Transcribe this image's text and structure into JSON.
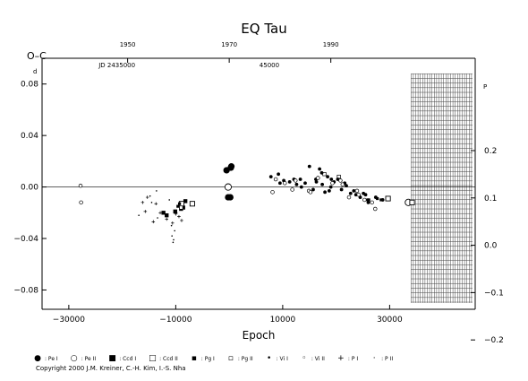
{
  "chart_data": {
    "type": "scatter",
    "title": "EQ Tau",
    "xlabel": "Epoch",
    "ylabel": "O–C",
    "y_unit_left": "d",
    "y_unit_right": "P",
    "xlim": [
      -35000,
      46000
    ],
    "ylim": [
      -0.095,
      0.1
    ],
    "x_ticks": [
      "−30000",
      "−10000",
      "10000",
      "30000"
    ],
    "x_tick_values": [
      -30000,
      -10000,
      10000,
      30000
    ],
    "y_ticks_left": [
      "0.08",
      "0.04",
      "0.00",
      "−0.04",
      "−0.08"
    ],
    "y_tick_values_left": [
      0.08,
      0.04,
      0.0,
      -0.04,
      -0.08
    ],
    "y_ticks_right": [
      "0.2",
      "0.1",
      "0.0",
      "−0.1",
      "−0.2"
    ],
    "y_tick_values_right": [
      0.2,
      0.1,
      0.0,
      -0.1,
      -0.2
    ],
    "top_axis": {
      "years": [
        "1950",
        "1970",
        "1990"
      ],
      "year_epochs": [
        -19000,
        0,
        19000
      ],
      "jd_labels": [
        "JD 2435000",
        "45000"
      ],
      "jd_epochs": [
        -21000,
        7500
      ]
    },
    "grid": false,
    "predicted_region": {
      "x_start": 34000,
      "x_end": 45500,
      "y_min": -0.09,
      "y_max": 0.088
    },
    "series": [
      {
        "name": "Pe I",
        "symbol": "filled-big",
        "x": [
          -500,
          300,
          400,
          200,
          -200
        ],
        "y": [
          0.013,
          0.015,
          0.016,
          -0.008,
          -0.008
        ]
      },
      {
        "name": "Pe II",
        "symbol": "open-big",
        "x": [
          -200,
          33500
        ],
        "y": [
          0.0,
          -0.012
        ]
      },
      {
        "name": "Ccd I",
        "symbol": "filled-square",
        "x": [
          -12300,
          -11700,
          -10100,
          -9000,
          -8600,
          -8200
        ],
        "y": [
          -0.02,
          -0.022,
          -0.019,
          -0.017,
          -0.016,
          -0.011
        ]
      },
      {
        "name": "Ccd II",
        "symbol": "open-square",
        "x": [
          -8900,
          -6900,
          29700,
          34200
        ],
        "y": [
          -0.013,
          -0.013,
          -0.009,
          -0.012
        ]
      },
      {
        "name": "Pg I",
        "symbol": "filled-small",
        "x": [
          -9600,
          -9300,
          25900,
          26100,
          27700,
          28400
        ],
        "y": [
          -0.015,
          -0.013,
          -0.01,
          -0.01,
          -0.009,
          -0.01
        ]
      },
      {
        "name": "Pg II",
        "symbol": "open-small",
        "x": [
          -9000,
          17800,
          20500
        ],
        "y": [
          -0.016,
          0.01,
          0.008
        ]
      },
      {
        "name": "Vi I",
        "symbol": "filled-dot",
        "x": [
          7800,
          9200,
          10200,
          11300,
          12600,
          13500,
          14200,
          15000,
          15700,
          16300,
          16900,
          17400,
          17900,
          18400,
          19000,
          19600,
          20300,
          21000,
          21900,
          22700,
          23700,
          24500,
          25100,
          26000,
          27400,
          28700,
          16200,
          17300,
          12100,
          18700,
          23300,
          25500,
          9500,
          13300,
          19100,
          21600
        ],
        "y": [
          0.008,
          0.01,
          0.005,
          0.004,
          0.002,
          0.0,
          0.003,
          0.016,
          -0.002,
          0.004,
          0.014,
          0.002,
          -0.004,
          0.008,
          0.0,
          0.004,
          0.006,
          -0.002,
          0.001,
          -0.005,
          -0.006,
          -0.008,
          -0.005,
          -0.012,
          -0.008,
          -0.01,
          0.006,
          0.011,
          0.006,
          -0.003,
          -0.003,
          -0.006,
          0.003,
          0.006,
          0.006,
          0.003
        ]
      },
      {
        "name": "Vi II",
        "symbol": "open-dot",
        "x": [
          -27800,
          -27700,
          8100,
          10400,
          12400,
          14900,
          16600,
          19300,
          20800,
          22400,
          24200,
          26700,
          27300,
          8700,
          11800,
          15200,
          21200,
          23900,
          25300
        ],
        "y": [
          0.001,
          -0.012,
          -0.004,
          0.003,
          0.005,
          -0.003,
          0.007,
          0.003,
          0.005,
          -0.008,
          -0.006,
          -0.012,
          -0.017,
          0.006,
          -0.002,
          -0.004,
          0.002,
          -0.003,
          -0.01
        ]
      },
      {
        "name": "P I",
        "symbol": "plus",
        "x": [
          -16200,
          -15700,
          -15300,
          -14200,
          -13700,
          -12900,
          -11700,
          -10600,
          -10000,
          -9400,
          -8900
        ],
        "y": [
          -0.012,
          -0.019,
          -0.008,
          -0.027,
          -0.013,
          -0.02,
          -0.025,
          -0.028,
          -0.021,
          -0.023,
          -0.026
        ]
      },
      {
        "name": "P II",
        "symbol": "dot",
        "x": [
          -16900,
          -14800,
          -14500,
          -13600,
          -13400,
          -11200,
          -10800,
          -10700,
          -10500,
          -10400,
          -10200,
          -9800
        ],
        "y": [
          -0.022,
          -0.007,
          -0.012,
          -0.003,
          -0.024,
          -0.01,
          -0.03,
          -0.038,
          -0.043,
          -0.041,
          -0.034,
          -0.02
        ]
      }
    ]
  },
  "legend": [
    {
      "label": ": Pe I",
      "glyph": "●"
    },
    {
      "label": ": Pe II",
      "glyph": "○"
    },
    {
      "label": ": Ccd I",
      "glyph": "■"
    },
    {
      "label": ": Ccd II",
      "glyph": "□"
    },
    {
      "label": ": Pg I",
      "glyph": "▪"
    },
    {
      "label": ": Pg II",
      "glyph": "▫"
    },
    {
      "label": ": Vi I",
      "glyph": "•"
    },
    {
      "label": ": Vi II",
      "glyph": "◦"
    },
    {
      "label": ": P I",
      "glyph": "+"
    },
    {
      "label": ": P II",
      "glyph": "·"
    }
  ],
  "copyright": "Copyright 2000 J.M. Kreiner, C.-H. Kim, I.-S. Nha"
}
